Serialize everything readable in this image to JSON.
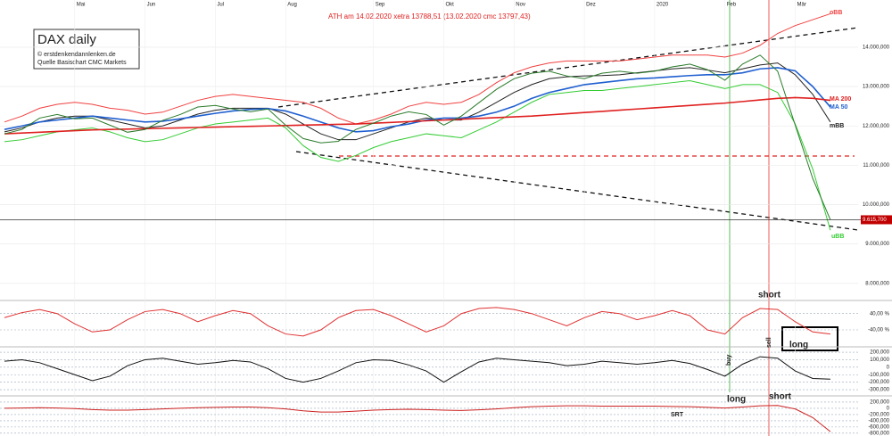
{
  "chart_data": [
    {
      "type": "line",
      "title": "DAX daily",
      "subtitle": [
        "© erstdenkendannlenken.de",
        "Quelle Basischart CMC Markets"
      ],
      "headline": "ATH am 14.02.2020 xetra 13788,51 (13.02.2020  cmc 13797,43)",
      "categories": [
        null,
        null,
        null,
        null,
        "Mai",
        null,
        null,
        null,
        "Jun",
        null,
        null,
        null,
        "Jul",
        null,
        null,
        null,
        "Aug",
        null,
        null,
        null,
        null,
        "Sep",
        null,
        null,
        null,
        "Okt",
        null,
        null,
        null,
        "Nov",
        null,
        null,
        null,
        "Dez",
        null,
        null,
        null,
        "2020",
        null,
        null,
        null,
        "Feb",
        null,
        null,
        null,
        "Mär",
        null,
        null
      ],
      "ylim": [
        7610,
        15200
      ],
      "yticks": [
        {
          "value": 8000,
          "label": "8.000,000"
        },
        {
          "value": 9000,
          "label": "9.000,000"
        },
        {
          "value": 10000,
          "label": "10.000,000"
        },
        {
          "value": 11000,
          "label": "11.000,000"
        },
        {
          "value": 12000,
          "label": "12.000,000"
        },
        {
          "value": 13000,
          "label": "13.000,000"
        },
        {
          "value": 14000,
          "label": "14.000,000"
        }
      ],
      "grid": true,
      "last_price": {
        "value": 9615.7,
        "label": "9.615,700"
      },
      "series": [
        {
          "name": "oBB",
          "color": "#f04040",
          "values": [
            12100,
            12250,
            12450,
            12550,
            12600,
            12550,
            12450,
            12400,
            12300,
            12350,
            12500,
            12650,
            12750,
            12800,
            12750,
            12700,
            12650,
            12600,
            12450,
            12200,
            12050,
            12150,
            12300,
            12500,
            12600,
            12550,
            12600,
            12800,
            13100,
            13350,
            13500,
            13600,
            13650,
            13650,
            13650,
            13650,
            13700,
            13750,
            13800,
            13800,
            13800,
            13750,
            13850,
            14050,
            14350,
            14550,
            14700,
            14850
          ]
        },
        {
          "name": "uBB",
          "color": "#33cc33",
          "values": [
            11600,
            11650,
            11750,
            11850,
            11900,
            11950,
            11850,
            11700,
            11600,
            11650,
            11800,
            11950,
            12050,
            12100,
            12150,
            12200,
            11950,
            11500,
            11200,
            11100,
            11250,
            11450,
            11600,
            11700,
            11800,
            11750,
            11700,
            11900,
            12100,
            12350,
            12600,
            12800,
            12850,
            12900,
            12900,
            12950,
            13000,
            13050,
            13100,
            13150,
            13050,
            12950,
            13050,
            13050,
            12850,
            12050,
            10900,
            9350
          ]
        },
        {
          "name": "mBB",
          "color": "#222222",
          "values": [
            11850,
            11950,
            12100,
            12200,
            12250,
            12250,
            12150,
            12050,
            11950,
            12000,
            12150,
            12300,
            12400,
            12450,
            12450,
            12450,
            12300,
            12050,
            11800,
            11650,
            11650,
            11800,
            11950,
            12100,
            12200,
            12150,
            12150,
            12350,
            12600,
            12850,
            13050,
            13200,
            13250,
            13270,
            13280,
            13300,
            13350,
            13400,
            13450,
            13480,
            13420,
            13350,
            13450,
            13550,
            13600,
            13300,
            12800,
            12100
          ]
        },
        {
          "name": "MA 50",
          "color": "#1f5fd0",
          "values": [
            11910,
            12000,
            12100,
            12150,
            12200,
            12250,
            12200,
            12150,
            12100,
            12120,
            12180,
            12250,
            12320,
            12380,
            12420,
            12440,
            12380,
            12250,
            12100,
            11950,
            11850,
            11880,
            11980,
            12050,
            12150,
            12200,
            12200,
            12250,
            12350,
            12500,
            12700,
            12850,
            12950,
            13050,
            13100,
            13150,
            13200,
            13220,
            13250,
            13280,
            13300,
            13300,
            13350,
            13450,
            13480,
            13400,
            13000,
            12480
          ]
        },
        {
          "name": "MA 200",
          "color": "#e02020",
          "values": [
            11800,
            11820,
            11840,
            11860,
            11880,
            11900,
            11910,
            11920,
            11930,
            11940,
            11950,
            11960,
            11970,
            11980,
            11990,
            12000,
            12010,
            12020,
            12030,
            12040,
            12050,
            12070,
            12090,
            12110,
            12130,
            12150,
            12170,
            12190,
            12210,
            12230,
            12250,
            12280,
            12310,
            12340,
            12370,
            12400,
            12430,
            12460,
            12490,
            12520,
            12550,
            12580,
            12620,
            12660,
            12700,
            12720,
            12700,
            12650
          ]
        },
        {
          "name": "DAX",
          "color": "#2a7a2a",
          "values": [
            11800,
            11910,
            12200,
            12290,
            12180,
            12200,
            12020,
            11840,
            11910,
            12140,
            12290,
            12480,
            12520,
            12430,
            12360,
            12430,
            12020,
            11680,
            11570,
            11610,
            11910,
            12070,
            12250,
            12360,
            12290,
            12020,
            12250,
            12590,
            12930,
            13200,
            13340,
            13390,
            13270,
            13200,
            13340,
            13390,
            13340,
            13390,
            13500,
            13570,
            13430,
            13160,
            13570,
            13800,
            13390,
            12020,
            10660,
            9615.7
          ]
        }
      ]
    },
    {
      "type": "line",
      "ylim": [
        -110,
        100
      ],
      "yticks": [
        {
          "value": 40,
          "label": "40,00 %"
        },
        {
          "value": -40,
          "label": "-40,00 %"
        }
      ],
      "annotations": [
        "short",
        "long"
      ],
      "series": [
        {
          "color": "#e03030",
          "values": [
            20,
            45,
            60,
            40,
            -10,
            -50,
            -40,
            10,
            50,
            60,
            40,
            0,
            30,
            55,
            40,
            -20,
            -60,
            -70,
            -40,
            20,
            55,
            60,
            30,
            -10,
            -50,
            -20,
            40,
            65,
            70,
            60,
            40,
            10,
            -20,
            20,
            50,
            40,
            10,
            30,
            55,
            30,
            -40,
            -60,
            20,
            65,
            60,
            0,
            -50,
            -60
          ]
        }
      ]
    },
    {
      "type": "line",
      "ylim": [
        -335000,
        260000
      ],
      "yticks": [
        {
          "value": 200000,
          "label": "200,000"
        },
        {
          "value": 100000,
          "label": "100,000"
        },
        0,
        {
          "value": -100000,
          "label": "-100,000"
        },
        {
          "value": -200000,
          "label": "-200,000"
        },
        {
          "value": -300000,
          "label": "-300,000"
        }
      ],
      "annotations": [
        "buy",
        "sell"
      ],
      "series": [
        {
          "color": "#111111",
          "values": [
            80000,
            100000,
            60000,
            -20000,
            -100000,
            -180000,
            -120000,
            20000,
            100000,
            120000,
            80000,
            40000,
            60000,
            90000,
            70000,
            -20000,
            -150000,
            -200000,
            -150000,
            -50000,
            60000,
            100000,
            90000,
            30000,
            -50000,
            -200000,
            -60000,
            70000,
            120000,
            100000,
            80000,
            60000,
            20000,
            40000,
            80000,
            60000,
            40000,
            60000,
            90000,
            50000,
            -30000,
            -120000,
            40000,
            140000,
            120000,
            -50000,
            -150000,
            -160000
          ]
        }
      ]
    },
    {
      "type": "line",
      "ylim": [
        -890000,
        370000
      ],
      "yticks": [
        {
          "value": 200000,
          "label": "200,000"
        },
        0,
        {
          "value": -200000,
          "label": "-200,000"
        },
        {
          "value": -400000,
          "label": "-400,000"
        },
        {
          "value": -600000,
          "label": "-600,000"
        },
        {
          "value": -800000,
          "label": "-800,000"
        }
      ],
      "annotations": [
        "SRT",
        "long",
        "short"
      ],
      "series": [
        {
          "color": "#cc2020",
          "values": [
            0,
            10000,
            20000,
            10000,
            -10000,
            -40000,
            -60000,
            -60000,
            -40000,
            -20000,
            0,
            20000,
            30000,
            40000,
            40000,
            20000,
            -20000,
            -80000,
            -120000,
            -120000,
            -90000,
            -60000,
            -40000,
            -30000,
            -40000,
            -60000,
            -70000,
            -50000,
            -20000,
            20000,
            50000,
            70000,
            80000,
            80000,
            70000,
            70000,
            70000,
            70000,
            60000,
            50000,
            30000,
            10000,
            40000,
            80000,
            90000,
            -20000,
            -300000,
            -750000
          ]
        }
      ]
    }
  ]
}
